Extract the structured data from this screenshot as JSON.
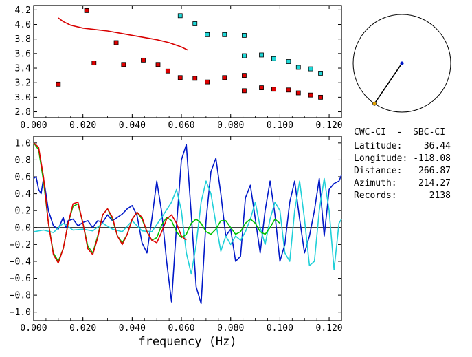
{
  "chart_data": [
    {
      "type": "scatter",
      "title": "",
      "xlabel": "",
      "ylabel": "",
      "xlim": [
        0.0,
        0.125
      ],
      "ylim": [
        2.72,
        4.26
      ],
      "xticks": [
        "0.000",
        "0.020",
        "0.040",
        "0.060",
        "0.080",
        "0.100",
        "0.120"
      ],
      "xtick_values": [
        0.0,
        0.02,
        0.04,
        0.06,
        0.08,
        0.1,
        0.12
      ],
      "yticks": [
        "2.8",
        "3.0",
        "3.2",
        "3.4",
        "3.6",
        "3.8",
        "4.0",
        "4.2"
      ],
      "ytick_values": [
        2.8,
        3.0,
        3.2,
        3.4,
        3.6,
        3.8,
        4.0,
        4.2
      ],
      "grid": false,
      "series": [
        {
          "kind": "line",
          "color": "#d80000",
          "x": [
            0.01,
            0.012,
            0.015,
            0.02,
            0.025,
            0.03,
            0.035,
            0.04,
            0.045,
            0.05,
            0.055,
            0.06,
            0.0625
          ],
          "y": [
            4.09,
            4.04,
            3.99,
            3.95,
            3.93,
            3.91,
            3.88,
            3.85,
            3.82,
            3.79,
            3.75,
            3.69,
            3.65
          ]
        },
        {
          "kind": "markers",
          "color": "#e00000",
          "x": [
            0.01,
            0.0215,
            0.0245,
            0.0335,
            0.0365,
            0.0445,
            0.0505,
            0.0545,
            0.0595,
            0.0655,
            0.0705,
            0.0775,
            0.0855,
            0.0855,
            0.0925,
            0.0975,
            0.1035,
            0.1075,
            0.1125,
            0.1165
          ],
          "y": [
            3.18,
            4.19,
            3.47,
            3.75,
            3.45,
            3.51,
            3.45,
            3.36,
            3.27,
            3.26,
            3.21,
            3.27,
            3.3,
            3.09,
            3.13,
            3.11,
            3.1,
            3.06,
            3.03,
            3.0
          ]
        },
        {
          "kind": "markers",
          "color": "#20d8d8",
          "x": [
            0.0595,
            0.0655,
            0.0705,
            0.0775,
            0.0855,
            0.0855,
            0.0925,
            0.0975,
            0.1035,
            0.1075,
            0.1125,
            0.1165
          ],
          "y": [
            4.12,
            4.01,
            3.86,
            3.86,
            3.85,
            3.57,
            3.58,
            3.53,
            3.49,
            3.41,
            3.39,
            3.33
          ]
        }
      ]
    },
    {
      "type": "line",
      "title": "",
      "xlabel": "frequency (Hz)",
      "ylabel": "",
      "xlim": [
        0.0,
        0.125
      ],
      "ylim": [
        -1.1,
        1.08
      ],
      "xticks": [
        "0.000",
        "0.020",
        "0.040",
        "0.060",
        "0.080",
        "0.100",
        "0.120"
      ],
      "xtick_values": [
        0.0,
        0.02,
        0.04,
        0.06,
        0.08,
        0.1,
        0.12
      ],
      "yticks": [
        "1.0",
        "0.8",
        "0.6",
        "0.4",
        "0.2",
        "0.0",
        "−0.2",
        "−0.4",
        "−0.6",
        "−0.8",
        "−1.0"
      ],
      "ytick_values": [
        1.0,
        0.8,
        0.6,
        0.4,
        0.2,
        0.0,
        -0.2,
        -0.4,
        -0.6,
        -0.8,
        -1.0
      ],
      "zero_line": true,
      "grid": false,
      "series": [
        {
          "color": "#0018c8",
          "x": [
            0.0,
            0.001,
            0.002,
            0.003,
            0.004,
            0.005,
            0.006,
            0.008,
            0.01,
            0.012,
            0.013,
            0.014,
            0.016,
            0.018,
            0.02,
            0.022,
            0.024,
            0.026,
            0.028,
            0.03,
            0.032,
            0.034,
            0.036,
            0.038,
            0.04,
            0.042,
            0.044,
            0.046,
            0.048,
            0.05,
            0.052,
            0.054,
            0.056,
            0.058,
            0.06,
            0.062,
            0.064,
            0.066,
            0.068,
            0.07,
            0.072,
            0.074,
            0.076,
            0.078,
            0.08,
            0.082,
            0.084,
            0.086,
            0.088,
            0.09,
            0.092,
            0.094,
            0.096,
            0.098,
            0.1,
            0.102,
            0.104,
            0.106,
            0.108,
            0.11,
            0.112,
            0.114,
            0.116,
            0.118,
            0.12,
            0.122,
            0.124,
            0.125
          ],
          "y": [
            0.58,
            0.6,
            0.45,
            0.4,
            0.58,
            0.4,
            0.2,
            0.02,
            -0.02,
            0.12,
            0.0,
            0.08,
            0.1,
            0.02,
            0.06,
            0.08,
            0.0,
            0.08,
            0.06,
            0.15,
            0.08,
            0.12,
            0.16,
            0.22,
            0.26,
            0.14,
            -0.18,
            -0.3,
            0.1,
            0.55,
            0.18,
            -0.4,
            -0.88,
            0.02,
            0.8,
            0.98,
            0.15,
            -0.7,
            -0.9,
            0.08,
            0.66,
            0.82,
            0.4,
            -0.1,
            -0.02,
            -0.4,
            -0.34,
            0.35,
            0.5,
            0.1,
            -0.3,
            0.2,
            0.55,
            0.15,
            -0.4,
            -0.2,
            0.3,
            0.55,
            0.1,
            -0.3,
            -0.1,
            0.2,
            0.58,
            -0.1,
            0.45,
            0.52,
            0.55,
            0.62
          ]
        },
        {
          "color": "#20d0d8",
          "x": [
            0.0,
            0.004,
            0.008,
            0.012,
            0.016,
            0.02,
            0.024,
            0.028,
            0.032,
            0.036,
            0.04,
            0.044,
            0.048,
            0.052,
            0.056,
            0.058,
            0.06,
            0.062,
            0.064,
            0.066,
            0.068,
            0.07,
            0.072,
            0.074,
            0.076,
            0.078,
            0.08,
            0.082,
            0.084,
            0.086,
            0.088,
            0.09,
            0.092,
            0.094,
            0.096,
            0.098,
            0.1,
            0.102,
            0.104,
            0.106,
            0.108,
            0.11,
            0.112,
            0.114,
            0.116,
            0.118,
            0.12,
            0.122,
            0.124,
            0.125
          ],
          "y": [
            -0.05,
            -0.03,
            -0.06,
            0.05,
            -0.03,
            -0.02,
            -0.04,
            0.05,
            -0.02,
            -0.05,
            0.08,
            -0.04,
            -0.05,
            0.12,
            0.3,
            0.45,
            0.2,
            -0.3,
            -0.55,
            -0.2,
            0.3,
            0.55,
            0.4,
            0.05,
            -0.28,
            -0.1,
            -0.2,
            -0.1,
            -0.15,
            -0.05,
            0.1,
            0.3,
            0.0,
            -0.2,
            0.1,
            0.3,
            0.2,
            -0.3,
            -0.4,
            0.2,
            0.55,
            0.1,
            -0.45,
            -0.4,
            0.2,
            0.58,
            0.2,
            -0.5,
            0.05,
            0.1
          ]
        },
        {
          "color": "#00c000",
          "x": [
            0.0,
            0.002,
            0.004,
            0.006,
            0.008,
            0.01,
            0.012,
            0.014,
            0.016,
            0.018,
            0.02,
            0.022,
            0.024,
            0.026,
            0.028,
            0.03,
            0.032,
            0.034,
            0.036,
            0.038,
            0.04,
            0.042,
            0.044,
            0.046,
            0.048,
            0.05,
            0.052,
            0.054,
            0.056,
            0.058,
            0.06,
            0.062,
            0.064,
            0.066,
            0.068,
            0.07,
            0.072,
            0.074,
            0.076,
            0.078,
            0.08,
            0.082,
            0.084,
            0.086,
            0.088,
            0.09,
            0.092,
            0.094,
            0.096,
            0.098,
            0.1
          ],
          "y": [
            1.0,
            0.92,
            0.55,
            0.05,
            -0.3,
            -0.4,
            -0.25,
            0.05,
            0.25,
            0.28,
            0.05,
            -0.22,
            -0.3,
            -0.1,
            0.15,
            0.22,
            0.1,
            -0.1,
            -0.18,
            -0.08,
            0.1,
            0.18,
            0.1,
            -0.05,
            -0.15,
            -0.12,
            0.03,
            0.12,
            0.08,
            -0.05,
            -0.12,
            -0.08,
            0.05,
            0.1,
            0.05,
            -0.05,
            -0.08,
            -0.02,
            0.08,
            0.08,
            0.0,
            -0.08,
            -0.05,
            0.05,
            0.1,
            0.05,
            -0.05,
            -0.08,
            0.0,
            0.1,
            0.05
          ]
        },
        {
          "color": "#e00000",
          "x": [
            0.0,
            0.002,
            0.004,
            0.006,
            0.008,
            0.01,
            0.012,
            0.014,
            0.016,
            0.018,
            0.02,
            0.022,
            0.024,
            0.026,
            0.028,
            0.03,
            0.032,
            0.034,
            0.036,
            0.038,
            0.04,
            0.042,
            0.044,
            0.046,
            0.048,
            0.05,
            0.052,
            0.054,
            0.056,
            0.058,
            0.06,
            0.062
          ],
          "y": [
            1.0,
            0.95,
            0.6,
            0.05,
            -0.32,
            -0.42,
            -0.25,
            0.05,
            0.28,
            0.3,
            0.05,
            -0.25,
            -0.32,
            -0.12,
            0.15,
            0.22,
            0.12,
            -0.1,
            -0.2,
            -0.08,
            0.1,
            0.18,
            0.12,
            -0.05,
            -0.15,
            -0.18,
            -0.05,
            0.1,
            0.15,
            0.05,
            -0.1,
            -0.15
          ]
        }
      ]
    }
  ],
  "info": {
    "title": "CWC-CI  -  SBC-CI",
    "rows": [
      {
        "label": "Latitude:",
        "value": "36.44"
      },
      {
        "label": "Longitude:",
        "value": "-118.08"
      },
      {
        "label": "Distance:",
        "value": "266.87"
      },
      {
        "label": "Azimuth:",
        "value": "214.27"
      },
      {
        "label": "Records:",
        "value": "2138"
      }
    ]
  },
  "azimuth_indicator": {
    "azimuth_deg": 214.27,
    "center_color": "#0018c8",
    "end_color": "#e0a000"
  }
}
